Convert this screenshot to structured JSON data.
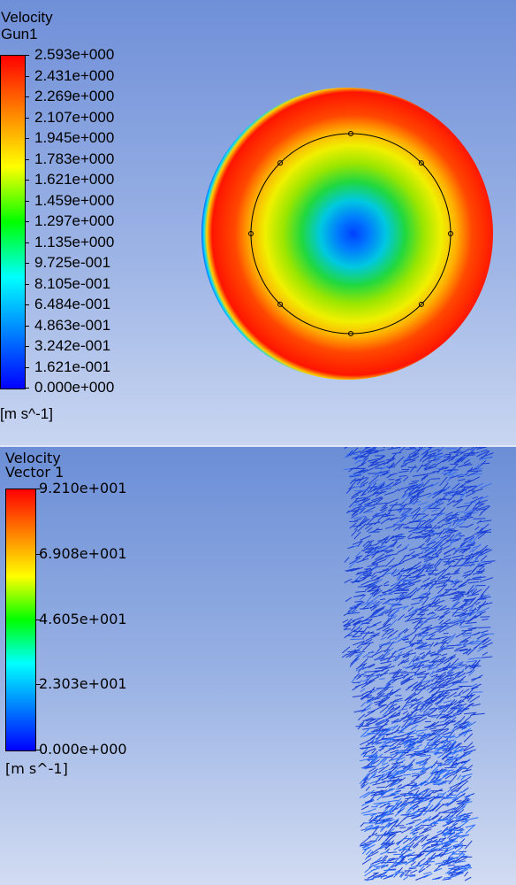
{
  "top_panel": {
    "title_line1": "Velocity",
    "title_line2": "Gun1",
    "unit": "[m s^-1]",
    "ticks": [
      "2.593e+000",
      "2.431e+000",
      "2.269e+000",
      "2.107e+000",
      "1.945e+000",
      "1.783e+000",
      "1.621e+000",
      "1.459e+000",
      "1.297e+000",
      "1.135e+000",
      "9.725e-001",
      "8.105e-001",
      "6.484e-001",
      "4.863e-001",
      "3.242e-001",
      "1.621e-001",
      "0.000e+000"
    ]
  },
  "bottom_panel": {
    "title_line1": "Velocity",
    "title_line2": "Vector 1",
    "unit": "[m s^-1]",
    "ticks": [
      "9.210e+001",
      "6.908e+001",
      "4.605e+001",
      "2.303e+001",
      "0.000e+000"
    ]
  },
  "colors": {
    "legend_gradient": [
      "#ff0000",
      "#ff8000",
      "#ffff00",
      "#00ff00",
      "#00ffff",
      "#0080ff",
      "#0000ff"
    ],
    "vector_color": "#1a3fd6"
  }
}
